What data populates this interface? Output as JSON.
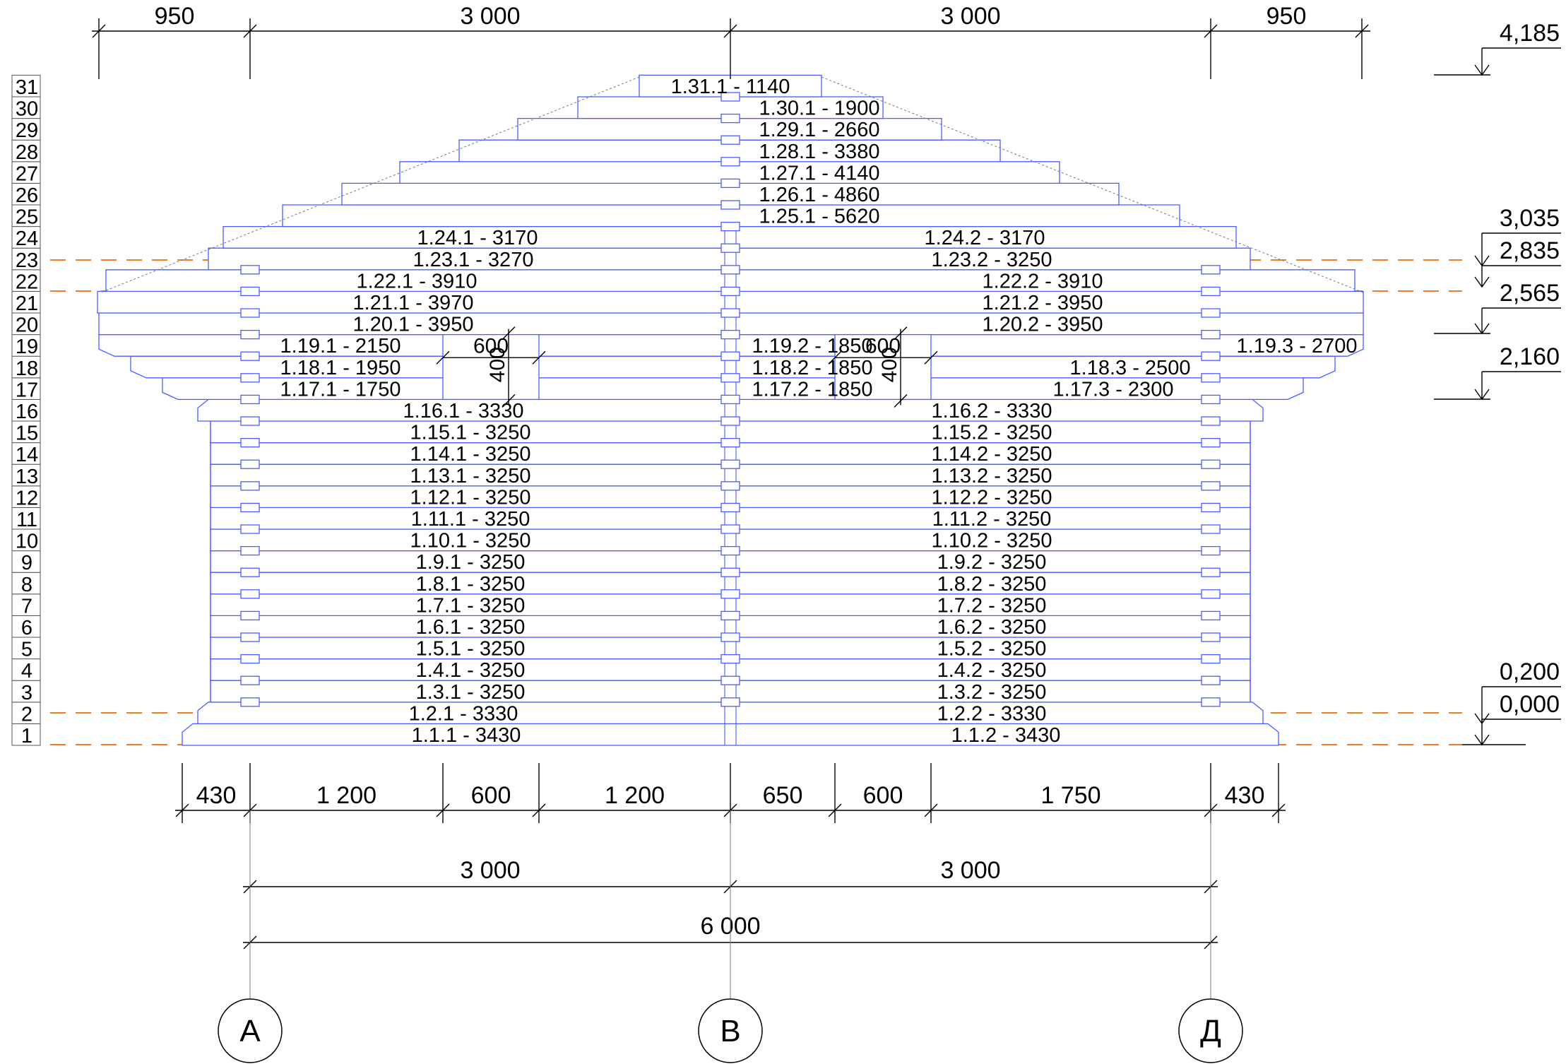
{
  "top_dims": [
    "950",
    "3 000",
    "3 000",
    "950"
  ],
  "level_marks": [
    "4,185",
    "3,035",
    "2,835",
    "2,565",
    "2,160",
    "0,200",
    "0,000"
  ],
  "row_numbers": [
    "1",
    "2",
    "3",
    "4",
    "5",
    "6",
    "7",
    "8",
    "9",
    "10",
    "11",
    "12",
    "13",
    "14",
    "15",
    "16",
    "17",
    "18",
    "19",
    "20",
    "21",
    "22",
    "23",
    "24",
    "25",
    "26",
    "27",
    "28",
    "29",
    "30",
    "31"
  ],
  "log_labels": {
    "r1": [
      "1.1.1 - 3430",
      "1.1.2 - 3430"
    ],
    "r2": [
      "1.2.1 - 3330",
      "1.2.2 - 3330"
    ],
    "r3": [
      "1.3.1 - 3250",
      "1.3.2 - 3250"
    ],
    "r4": [
      "1.4.1 - 3250",
      "1.4.2 - 3250"
    ],
    "r5": [
      "1.5.1 - 3250",
      "1.5.2 - 3250"
    ],
    "r6": [
      "1.6.1 - 3250",
      "1.6.2 - 3250"
    ],
    "r7": [
      "1.7.1 - 3250",
      "1.7.2 - 3250"
    ],
    "r8": [
      "1.8.1 - 3250",
      "1.8.2 - 3250"
    ],
    "r9": [
      "1.9.1 - 3250",
      "1.9.2 - 3250"
    ],
    "r10": [
      "1.10.1 - 3250",
      "1.10.2 - 3250"
    ],
    "r11": [
      "1.11.1 - 3250",
      "1.11.2 - 3250"
    ],
    "r12": [
      "1.12.1 - 3250",
      "1.12.2 - 3250"
    ],
    "r13": [
      "1.13.1 - 3250",
      "1.13.2 - 3250"
    ],
    "r14": [
      "1.14.1 - 3250",
      "1.14.2 - 3250"
    ],
    "r15": [
      "1.15.1 - 3250",
      "1.15.2 - 3250"
    ],
    "r16": [
      "1.16.1 - 3330",
      "1.16.2 - 3330"
    ],
    "r17": [
      "1.17.1 - 1750",
      "1.17.2 - 1850",
      "1.17.3 - 2300"
    ],
    "r18": [
      "1.18.1 - 1950",
      "1.18.2 - 1850",
      "1.18.3 - 2500"
    ],
    "r19": [
      "1.19.1 - 2150",
      "1.19.2 - 1850",
      "1.19.3 - 2700"
    ],
    "r20": [
      "1.20.1 - 3950",
      "1.20.2 - 3950"
    ],
    "r21": [
      "1.21.1 - 3970",
      "1.21.2 - 3950"
    ],
    "r22": [
      "1.22.1 - 3910",
      "1.22.2 - 3910"
    ],
    "r23": [
      "1.23.1 - 3270",
      "1.23.2 - 3250"
    ],
    "r24": [
      "1.24.1 - 3170",
      "1.24.2 - 3170"
    ],
    "r25": [
      "1.25.1 - 5620"
    ],
    "r26": [
      "1.26.1 - 4860"
    ],
    "r27": [
      "1.27.1 - 4140"
    ],
    "r28": [
      "1.28.1 - 3380"
    ],
    "r29": [
      "1.29.1 - 2660"
    ],
    "r30": [
      "1.30.1 - 1900"
    ],
    "r31": [
      "1.31.1 - 1140"
    ]
  },
  "window_labels": {
    "w1_width": "600",
    "w1_height": "400",
    "w2_width": "600",
    "w2_height": "400"
  },
  "bottom_dims": [
    "430",
    "1 200",
    "600",
    "1 200",
    "650",
    "600",
    "1 750",
    "430"
  ],
  "axis_dims": [
    "3 000",
    "3 000"
  ],
  "total_dim": "6 000",
  "axes": [
    "А",
    "В",
    "Д"
  ],
  "colors": {
    "logs": "#4a5cff",
    "levels": "#f07b2b",
    "dims": "#000000"
  }
}
